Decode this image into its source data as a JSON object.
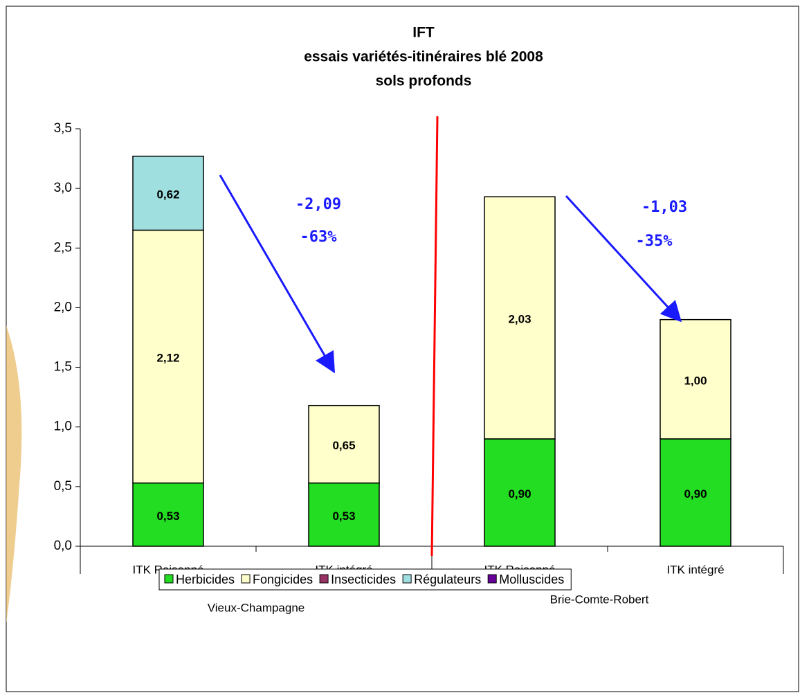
{
  "chart_data": {
    "type": "stacked_bar",
    "title": [
      "IFT",
      "essais variétés-itinéraires blé 2008",
      "sols profonds"
    ],
    "categories": [
      "ITK Raisonné",
      "ITK intégré",
      "ITK Raisonné",
      "ITK intégré"
    ],
    "groups": [
      "Vieux-Champagne",
      "Brie-Comte-Robert"
    ],
    "series": [
      {
        "name": "Herbicides",
        "color": "#22dd22",
        "values": [
          0.53,
          0.53,
          0.9,
          0.9
        ],
        "value_labels": [
          "0,53",
          "0,53",
          "0,90",
          "0,90"
        ]
      },
      {
        "name": "Fongicides",
        "color": "#ffffcc",
        "values": [
          2.12,
          0.65,
          2.03,
          1.0
        ],
        "value_labels": [
          "2,12",
          "0,65",
          "2,03",
          "1,00"
        ]
      },
      {
        "name": "Insecticides",
        "color": "#993366",
        "values": [
          0,
          0,
          0,
          0
        ],
        "value_labels": [
          null,
          null,
          null,
          null
        ]
      },
      {
        "name": "Régulateurs",
        "color": "#a0dfe0",
        "values": [
          0.62,
          0,
          0,
          0
        ],
        "value_labels": [
          "0,62",
          null,
          null,
          null
        ]
      },
      {
        "name": "Molluscides",
        "color": "#660099",
        "values": [
          0,
          0,
          0,
          0
        ],
        "value_labels": [
          null,
          null,
          null,
          null
        ]
      }
    ],
    "ylim": [
      0,
      3.5
    ],
    "yticks": [
      {
        "value": 0,
        "label": "0,0"
      },
      {
        "value": 0.5,
        "label": "0,5"
      },
      {
        "value": 1,
        "label": "1,0"
      },
      {
        "value": 1.5,
        "label": "1,5"
      },
      {
        "value": 2,
        "label": "2,0"
      },
      {
        "value": 2.5,
        "label": "2,5"
      },
      {
        "value": 3,
        "label": "3,0"
      },
      {
        "value": 3.5,
        "label": "3,5"
      }
    ],
    "annotations": [
      "-2,09",
      "-63%",
      "-1,03",
      "-35%"
    ],
    "legend": "bottom"
  }
}
